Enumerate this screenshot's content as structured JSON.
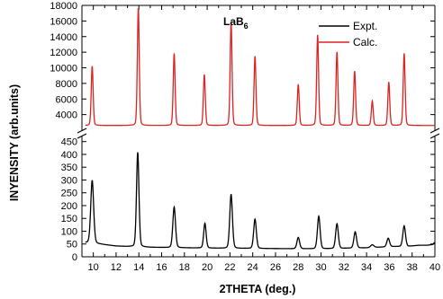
{
  "chart_data": {
    "type": "line",
    "xlabel": "2THETA (deg.)",
    "ylabel": "INYENSITY (arb.units)",
    "annotation": {
      "text": "LaB",
      "subscript": "6"
    },
    "xlim": [
      9,
      40
    ],
    "x_ticks": [
      10,
      12,
      14,
      16,
      18,
      20,
      22,
      24,
      26,
      28,
      30,
      32,
      34,
      36,
      38,
      40
    ],
    "broken_y_axis": true,
    "upper_panel": {
      "ylim": [
        2000,
        18000
      ],
      "y_ticks": [
        4000,
        6000,
        8000,
        10000,
        12000,
        14000,
        16000,
        18000
      ]
    },
    "lower_panel": {
      "ylim": [
        0,
        470
      ],
      "y_ticks": [
        0,
        50,
        100,
        150,
        200,
        250,
        300,
        350,
        400,
        450
      ]
    },
    "legend": {
      "position": "top-right"
    },
    "series": [
      {
        "name": "Expt.",
        "color": "#000000",
        "panel": "lower",
        "baseline_points": [
          [
            9.3,
            55
          ],
          [
            10.5,
            50
          ],
          [
            12,
            42
          ],
          [
            13,
            40
          ],
          [
            15,
            37
          ],
          [
            18,
            35
          ],
          [
            22,
            33
          ],
          [
            26,
            32
          ],
          [
            30,
            31
          ],
          [
            34,
            35
          ],
          [
            36.3,
            40
          ],
          [
            37.5,
            40
          ],
          [
            38.6,
            45
          ],
          [
            39.3,
            45
          ],
          [
            39.8,
            48
          ],
          [
            40,
            57
          ]
        ],
        "peaks": [
          {
            "x": 9.9,
            "height": 280,
            "width": 0.13
          },
          {
            "x": 13.9,
            "height": 420,
            "width": 0.11
          },
          {
            "x": 17.1,
            "height": 180,
            "width": 0.12
          },
          {
            "x": 19.8,
            "height": 110,
            "width": 0.11
          },
          {
            "x": 22.1,
            "height": 240,
            "width": 0.12
          },
          {
            "x": 24.2,
            "height": 130,
            "width": 0.12
          },
          {
            "x": 28.0,
            "height": 50,
            "width": 0.12
          },
          {
            "x": 29.8,
            "height": 145,
            "width": 0.12
          },
          {
            "x": 31.4,
            "height": 110,
            "width": 0.12
          },
          {
            "x": 33.0,
            "height": 72,
            "width": 0.12
          },
          {
            "x": 34.5,
            "height": 12,
            "width": 0.15
          },
          {
            "x": 35.9,
            "height": 38,
            "width": 0.12
          },
          {
            "x": 37.3,
            "height": 92,
            "width": 0.12
          }
        ]
      },
      {
        "name": "Calc.",
        "color": "#dd2222",
        "panel": "upper",
        "baseline": 2600,
        "peaks": [
          {
            "x": 9.9,
            "height": 8650,
            "width": 0.085
          },
          {
            "x": 13.95,
            "height": 17150,
            "width": 0.085
          },
          {
            "x": 17.1,
            "height": 10500,
            "width": 0.085
          },
          {
            "x": 19.75,
            "height": 7400,
            "width": 0.085
          },
          {
            "x": 22.1,
            "height": 15100,
            "width": 0.085
          },
          {
            "x": 24.2,
            "height": 10100,
            "width": 0.085
          },
          {
            "x": 28.0,
            "height": 6000,
            "width": 0.085
          },
          {
            "x": 29.7,
            "height": 13200,
            "width": 0.085
          },
          {
            "x": 31.4,
            "height": 10700,
            "width": 0.085
          },
          {
            "x": 32.95,
            "height": 7900,
            "width": 0.085
          },
          {
            "x": 34.5,
            "height": 3550,
            "width": 0.085
          },
          {
            "x": 35.95,
            "height": 6300,
            "width": 0.085
          },
          {
            "x": 37.3,
            "height": 10500,
            "width": 0.085
          }
        ]
      }
    ]
  }
}
